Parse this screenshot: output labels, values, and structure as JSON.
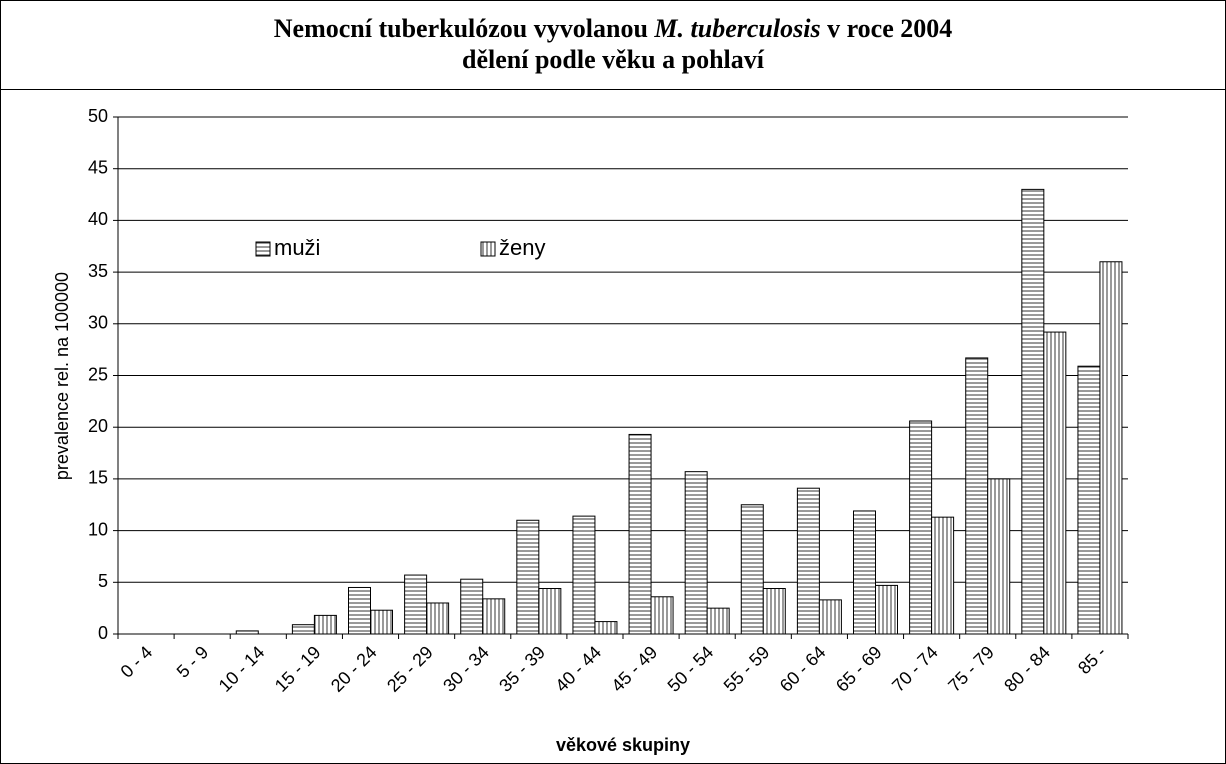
{
  "chart_data": {
    "type": "bar",
    "title": [
      "Nemocní tuberkulózou vyvolanou",
      "M. tuberculosis",
      "v roce 2004"
    ],
    "subtitle": "dělení podle věku a pohlaví",
    "x_label": "věkové skupiny",
    "y_label": "prevalence rel. na 100000",
    "categories": [
      "0 - 4",
      "5 - 9",
      "10 - 14",
      "15 - 19",
      "20 - 24",
      "25 - 29",
      "30 - 34",
      "35 - 39",
      "40 - 44",
      "45 - 49",
      "50 - 54",
      "55 - 59",
      "60 - 64",
      "65 - 69",
      "70 - 74",
      "75 - 79",
      "80 - 84",
      "85 -"
    ],
    "series": [
      {
        "name": "muži",
        "color": "#ffffff",
        "hatch": "horizontal",
        "values": [
          0,
          0,
          0.3,
          0.9,
          4.5,
          5.7,
          5.3,
          11,
          11.4,
          19.3,
          15.7,
          12.5,
          14.1,
          11.9,
          20.6,
          26.7,
          43,
          25.9
        ]
      },
      {
        "name": "ženy",
        "color": "#ffffff",
        "hatch": "vertical",
        "values": [
          0,
          0,
          0,
          1.8,
          2.3,
          3,
          3.4,
          4.4,
          1.2,
          3.6,
          2.5,
          4.4,
          3.3,
          4.7,
          11.3,
          15,
          29.2,
          36
        ]
      }
    ],
    "ylim": [
      0,
      50
    ],
    "yticks": [
      0,
      5,
      10,
      15,
      20,
      25,
      30,
      35,
      40,
      45,
      50
    ],
    "grid": true,
    "legend": "upper left"
  }
}
